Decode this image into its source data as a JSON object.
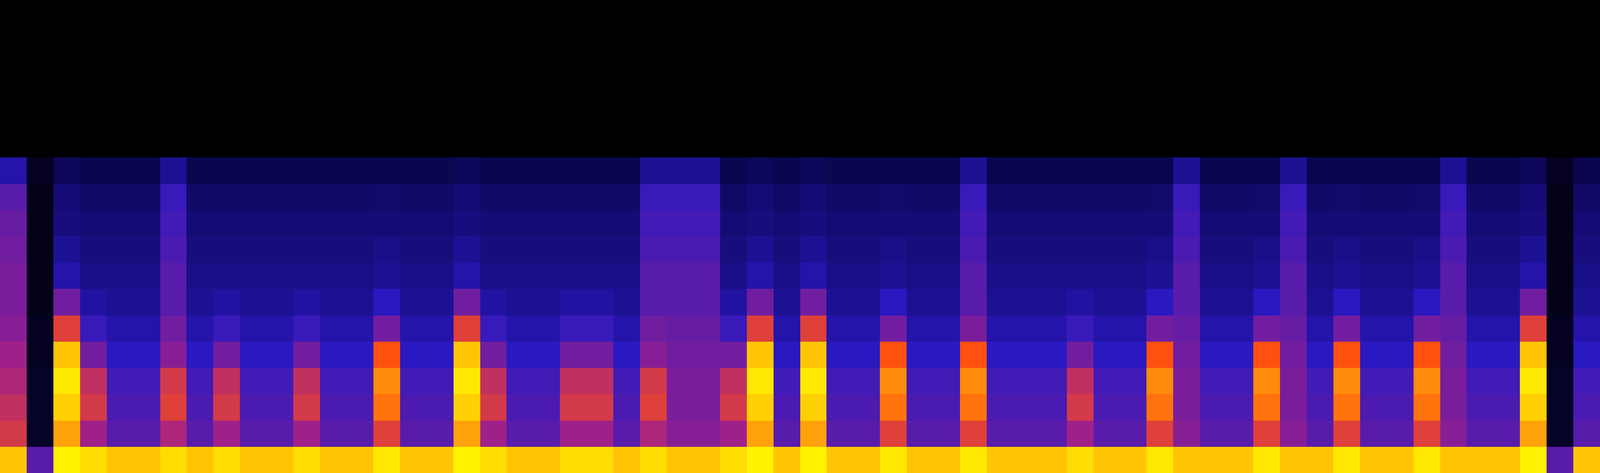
{
  "chart_data": {
    "type": "heatmap",
    "tick_labels": false,
    "zlim": [
      0,
      100
    ],
    "cells": [
      [
        0,
        0,
        0,
        0,
        0,
        0,
        0,
        0,
        0,
        0,
        0,
        0,
        0,
        0,
        0,
        0,
        0,
        0,
        0,
        0,
        0,
        0,
        0,
        0,
        0,
        0,
        0,
        0,
        0,
        0,
        0,
        0,
        0,
        0,
        0,
        0,
        0,
        0,
        0,
        0,
        0,
        0,
        0,
        0,
        0,
        0,
        0,
        0,
        0,
        0,
        0,
        0,
        0,
        0,
        0,
        0,
        0,
        0,
        0,
        0
      ],
      [
        0,
        0,
        0,
        0,
        0,
        0,
        0,
        0,
        0,
        0,
        0,
        0,
        0,
        0,
        0,
        0,
        0,
        0,
        0,
        0,
        0,
        0,
        0,
        0,
        0,
        0,
        0,
        0,
        0,
        0,
        0,
        0,
        0,
        0,
        0,
        0,
        0,
        0,
        0,
        0,
        0,
        0,
        0,
        0,
        0,
        0,
        0,
        0,
        0,
        0,
        0,
        0,
        0,
        0,
        0,
        0,
        0,
        0,
        0,
        0
      ],
      [
        0,
        0,
        0,
        0,
        0,
        0,
        0,
        0,
        0,
        0,
        0,
        0,
        0,
        0,
        0,
        0,
        0,
        0,
        0,
        0,
        0,
        0,
        0,
        0,
        0,
        0,
        0,
        0,
        0,
        0,
        0,
        0,
        0,
        0,
        0,
        0,
        0,
        0,
        0,
        0,
        0,
        0,
        0,
        0,
        0,
        0,
        0,
        0,
        0,
        0,
        0,
        0,
        0,
        0,
        0,
        0,
        0,
        0,
        0,
        0
      ],
      [
        0,
        0,
        0,
        0,
        0,
        0,
        0,
        0,
        0,
        0,
        0,
        0,
        0,
        0,
        0,
        0,
        0,
        0,
        0,
        0,
        0,
        0,
        0,
        0,
        0,
        0,
        0,
        0,
        0,
        0,
        0,
        0,
        0,
        0,
        0,
        0,
        0,
        0,
        0,
        0,
        0,
        0,
        0,
        0,
        0,
        0,
        0,
        0,
        0,
        0,
        0,
        0,
        0,
        0,
        0,
        0,
        0,
        0,
        0,
        0
      ],
      [
        0,
        0,
        0,
        0,
        0,
        0,
        0,
        0,
        0,
        0,
        0,
        0,
        0,
        0,
        0,
        0,
        0,
        0,
        0,
        0,
        0,
        0,
        0,
        0,
        0,
        0,
        0,
        0,
        0,
        0,
        0,
        0,
        0,
        0,
        0,
        0,
        0,
        0,
        0,
        0,
        0,
        0,
        0,
        0,
        0,
        0,
        0,
        0,
        0,
        0,
        0,
        0,
        0,
        0,
        0,
        0,
        0,
        0,
        0,
        0
      ],
      [
        0,
        0,
        0,
        0,
        0,
        0,
        0,
        0,
        0,
        0,
        0,
        0,
        0,
        0,
        0,
        0,
        0,
        0,
        0,
        0,
        0,
        0,
        0,
        0,
        0,
        0,
        0,
        0,
        0,
        0,
        0,
        0,
        0,
        0,
        0,
        0,
        0,
        0,
        0,
        0,
        0,
        0,
        0,
        0,
        0,
        0,
        0,
        0,
        0,
        0,
        0,
        0,
        0,
        0,
        0,
        0,
        0,
        0,
        0,
        0
      ],
      [
        40,
        8,
        22,
        20,
        20,
        20,
        35,
        20,
        20,
        20,
        20,
        20,
        20,
        20,
        20,
        20,
        20,
        22,
        20,
        20,
        20,
        20,
        20,
        20,
        35,
        35,
        35,
        20,
        22,
        20,
        22,
        20,
        20,
        20,
        20,
        20,
        35,
        20,
        20,
        20,
        20,
        20,
        20,
        20,
        35,
        20,
        20,
        20,
        35,
        20,
        20,
        20,
        20,
        20,
        35,
        20,
        20,
        22,
        8,
        20
      ],
      [
        55,
        6,
        28,
        25,
        25,
        25,
        48,
        25,
        25,
        25,
        25,
        25,
        25,
        25,
        26,
        25,
        25,
        28,
        25,
        25,
        25,
        25,
        25,
        25,
        48,
        48,
        48,
        25,
        28,
        25,
        28,
        25,
        25,
        26,
        25,
        25,
        48,
        25,
        25,
        25,
        25,
        25,
        25,
        26,
        48,
        25,
        25,
        26,
        48,
        25,
        26,
        25,
        25,
        26,
        48,
        25,
        25,
        28,
        6,
        25
      ],
      [
        58,
        6,
        30,
        28,
        28,
        28,
        50,
        28,
        28,
        28,
        28,
        28,
        28,
        28,
        28,
        28,
        28,
        30,
        28,
        28,
        28,
        28,
        28,
        28,
        50,
        50,
        50,
        28,
        30,
        28,
        30,
        28,
        28,
        28,
        28,
        28,
        50,
        28,
        28,
        28,
        28,
        28,
        28,
        28,
        50,
        28,
        28,
        28,
        50,
        28,
        28,
        28,
        28,
        28,
        50,
        28,
        28,
        30,
        6,
        28
      ],
      [
        60,
        6,
        35,
        30,
        30,
        30,
        52,
        30,
        30,
        30,
        30,
        30,
        30,
        30,
        32,
        30,
        30,
        35,
        30,
        30,
        30,
        30,
        30,
        30,
        52,
        52,
        52,
        30,
        35,
        30,
        35,
        30,
        30,
        32,
        30,
        30,
        52,
        30,
        30,
        30,
        30,
        30,
        30,
        32,
        52,
        30,
        30,
        32,
        52,
        30,
        32,
        30,
        30,
        32,
        52,
        30,
        30,
        35,
        6,
        30
      ],
      [
        62,
        6,
        40,
        32,
        32,
        32,
        55,
        32,
        32,
        32,
        32,
        32,
        32,
        32,
        35,
        32,
        32,
        40,
        32,
        32,
        32,
        32,
        32,
        32,
        55,
        55,
        55,
        32,
        40,
        32,
        40,
        32,
        32,
        35,
        32,
        32,
        55,
        32,
        32,
        32,
        32,
        32,
        32,
        35,
        55,
        32,
        32,
        35,
        55,
        32,
        35,
        32,
        32,
        35,
        55,
        32,
        32,
        40,
        6,
        32
      ],
      [
        62,
        6,
        60,
        38,
        35,
        35,
        55,
        35,
        38,
        35,
        35,
        38,
        35,
        35,
        45,
        35,
        35,
        60,
        38,
        35,
        35,
        38,
        38,
        35,
        55,
        55,
        55,
        38,
        60,
        35,
        60,
        35,
        35,
        45,
        35,
        35,
        55,
        35,
        35,
        35,
        38,
        35,
        35,
        45,
        55,
        35,
        35,
        45,
        55,
        35,
        45,
        35,
        35,
        45,
        55,
        35,
        35,
        60,
        6,
        35
      ],
      [
        65,
        8,
        80,
        48,
        40,
        40,
        60,
        40,
        48,
        40,
        40,
        48,
        40,
        40,
        60,
        40,
        40,
        80,
        48,
        40,
        40,
        48,
        48,
        40,
        60,
        58,
        58,
        48,
        80,
        40,
        80,
        40,
        40,
        60,
        40,
        40,
        62,
        40,
        40,
        40,
        48,
        40,
        40,
        60,
        58,
        40,
        40,
        60,
        58,
        40,
        60,
        40,
        40,
        60,
        58,
        40,
        40,
        80,
        8,
        40
      ],
      [
        70,
        8,
        95,
        60,
        45,
        45,
        65,
        45,
        60,
        45,
        45,
        60,
        45,
        45,
        85,
        45,
        45,
        95,
        60,
        45,
        45,
        60,
        60,
        45,
        65,
        60,
        60,
        60,
        95,
        45,
        95,
        45,
        45,
        85,
        45,
        45,
        85,
        45,
        45,
        45,
        60,
        45,
        45,
        85,
        60,
        45,
        45,
        85,
        60,
        45,
        85,
        45,
        45,
        85,
        60,
        45,
        45,
        95,
        8,
        45
      ],
      [
        72,
        10,
        98,
        75,
        50,
        50,
        78,
        50,
        75,
        50,
        50,
        75,
        50,
        50,
        90,
        50,
        50,
        98,
        75,
        50,
        50,
        75,
        75,
        50,
        78,
        62,
        62,
        75,
        98,
        50,
        98,
        50,
        50,
        90,
        50,
        50,
        90,
        50,
        50,
        50,
        75,
        50,
        50,
        90,
        62,
        50,
        50,
        90,
        62,
        50,
        90,
        50,
        50,
        90,
        62,
        50,
        50,
        98,
        10,
        50
      ],
      [
        75,
        10,
        96,
        78,
        52,
        52,
        80,
        52,
        78,
        52,
        52,
        78,
        52,
        52,
        88,
        52,
        52,
        96,
        78,
        52,
        52,
        78,
        78,
        52,
        80,
        62,
        62,
        78,
        96,
        52,
        96,
        52,
        52,
        88,
        52,
        52,
        88,
        52,
        52,
        52,
        78,
        52,
        52,
        88,
        62,
        52,
        52,
        88,
        62,
        52,
        88,
        52,
        52,
        88,
        62,
        52,
        52,
        96,
        10,
        52
      ],
      [
        78,
        10,
        92,
        70,
        55,
        55,
        72,
        55,
        70,
        55,
        55,
        70,
        55,
        55,
        80,
        55,
        55,
        92,
        70,
        55,
        55,
        70,
        70,
        55,
        72,
        65,
        65,
        70,
        92,
        55,
        92,
        55,
        55,
        80,
        55,
        55,
        80,
        55,
        55,
        55,
        70,
        55,
        55,
        80,
        65,
        55,
        55,
        80,
        65,
        55,
        80,
        55,
        55,
        80,
        65,
        55,
        55,
        92,
        10,
        55
      ],
      [
        95,
        55,
        99,
        97,
        95,
        95,
        97,
        95,
        97,
        95,
        95,
        97,
        95,
        95,
        98,
        95,
        95,
        99,
        97,
        95,
        95,
        97,
        97,
        95,
        97,
        95,
        95,
        97,
        99,
        95,
        99,
        95,
        95,
        98,
        95,
        95,
        98,
        95,
        95,
        95,
        97,
        95,
        95,
        98,
        95,
        95,
        95,
        98,
        95,
        95,
        98,
        95,
        95,
        98,
        95,
        95,
        95,
        99,
        55,
        95
      ]
    ]
  }
}
